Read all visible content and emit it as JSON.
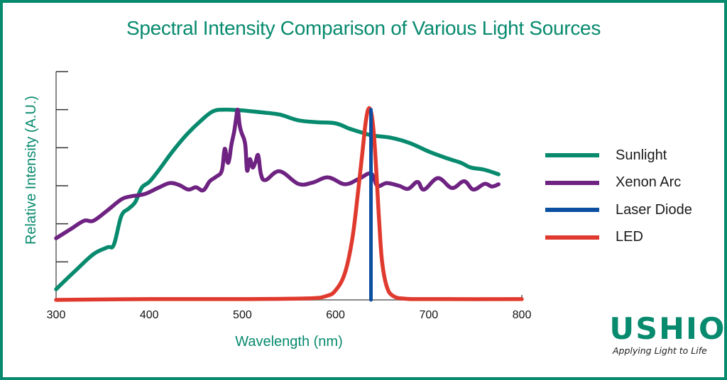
{
  "page": {
    "title": "Spectral Intensity Comparison of Various Light Sources"
  },
  "brand": {
    "logo_text": "USHIO",
    "tagline": "Applying Light to Life",
    "color": "#078a6e"
  },
  "chart_data": {
    "type": "line",
    "title": "Spectral Intensity Comparison of Various Light Sources",
    "xlabel": "Wavelength (nm)",
    "ylabel": "Relative Intensity (A.U.)",
    "xlim": [
      300,
      800
    ],
    "ylim": [
      0,
      6
    ],
    "xticks": [
      300,
      400,
      500,
      600,
      700,
      800
    ],
    "xtick_labels": [
      "300",
      "400",
      "500",
      "600",
      "700",
      "800"
    ],
    "yticks": [
      1,
      2,
      3,
      4,
      5,
      6
    ],
    "ytick_labels_shown": false,
    "grid": false,
    "legend": "right",
    "series": [
      {
        "name": "Sunlight",
        "color": "#078a6e",
        "points": [
          [
            300,
            0.28
          ],
          [
            320,
            0.75
          ],
          [
            340,
            1.2
          ],
          [
            355,
            1.38
          ],
          [
            362,
            1.45
          ],
          [
            370,
            2.2
          ],
          [
            378,
            2.4
          ],
          [
            385,
            2.57
          ],
          [
            392,
            2.95
          ],
          [
            400,
            3.1
          ],
          [
            410,
            3.4
          ],
          [
            425,
            3.9
          ],
          [
            440,
            4.34
          ],
          [
            455,
            4.7
          ],
          [
            468,
            4.95
          ],
          [
            480,
            5.0
          ],
          [
            500,
            4.98
          ],
          [
            520,
            4.93
          ],
          [
            540,
            4.87
          ],
          [
            560,
            4.72
          ],
          [
            580,
            4.67
          ],
          [
            600,
            4.64
          ],
          [
            615,
            4.5
          ],
          [
            628,
            4.4
          ],
          [
            640,
            4.32
          ],
          [
            660,
            4.26
          ],
          [
            680,
            4.12
          ],
          [
            700,
            3.9
          ],
          [
            720,
            3.72
          ],
          [
            735,
            3.6
          ],
          [
            745,
            3.48
          ],
          [
            760,
            3.42
          ],
          [
            775,
            3.3
          ]
        ]
      },
      {
        "name": "Xenon Arc",
        "color": "#6e2281",
        "points": [
          [
            300,
            1.62
          ],
          [
            315,
            1.85
          ],
          [
            330,
            2.08
          ],
          [
            340,
            2.08
          ],
          [
            355,
            2.35
          ],
          [
            370,
            2.64
          ],
          [
            380,
            2.72
          ],
          [
            395,
            2.78
          ],
          [
            410,
            2.95
          ],
          [
            422,
            3.07
          ],
          [
            432,
            3.02
          ],
          [
            442,
            2.9
          ],
          [
            450,
            2.96
          ],
          [
            458,
            2.88
          ],
          [
            465,
            3.12
          ],
          [
            472,
            3.24
          ],
          [
            478,
            3.4
          ],
          [
            481,
            3.97
          ],
          [
            484,
            3.62
          ],
          [
            486,
            3.7
          ],
          [
            488,
            4.05
          ],
          [
            491,
            4.4
          ],
          [
            493,
            4.72
          ],
          [
            495,
            5.0
          ],
          [
            497,
            4.6
          ],
          [
            499,
            4.4
          ],
          [
            503,
            4.1
          ],
          [
            505,
            3.4
          ],
          [
            508,
            3.7
          ],
          [
            511,
            3.48
          ],
          [
            514,
            3.62
          ],
          [
            517,
            3.8
          ],
          [
            520,
            3.3
          ],
          [
            525,
            3.15
          ],
          [
            540,
            3.38
          ],
          [
            560,
            3.05
          ],
          [
            575,
            3.08
          ],
          [
            592,
            3.22
          ],
          [
            610,
            3.04
          ],
          [
            625,
            3.18
          ],
          [
            638,
            3.32
          ],
          [
            645,
            3.0
          ],
          [
            655,
            3.07
          ],
          [
            668,
            3.0
          ],
          [
            678,
            2.92
          ],
          [
            688,
            3.1
          ],
          [
            695,
            2.9
          ],
          [
            710,
            3.2
          ],
          [
            725,
            2.94
          ],
          [
            738,
            3.12
          ],
          [
            748,
            2.9
          ],
          [
            760,
            3.05
          ],
          [
            768,
            2.98
          ],
          [
            775,
            3.04
          ]
        ]
      },
      {
        "name": "Laser Diode",
        "color": "#0b4fa0",
        "points": [
          [
            638,
            0.0
          ],
          [
            638,
            5.0
          ]
        ]
      },
      {
        "name": "LED",
        "color": "#e03a2f",
        "points": [
          [
            300,
            0.0
          ],
          [
            400,
            0.02
          ],
          [
            500,
            0.02
          ],
          [
            570,
            0.04
          ],
          [
            590,
            0.1
          ],
          [
            600,
            0.25
          ],
          [
            610,
            0.7
          ],
          [
            618,
            1.6
          ],
          [
            624,
            2.8
          ],
          [
            629,
            3.9
          ],
          [
            632,
            4.6
          ],
          [
            635,
            5.0
          ],
          [
            638,
            4.95
          ],
          [
            641,
            4.4
          ],
          [
            644,
            3.3
          ],
          [
            647,
            2.0
          ],
          [
            650,
            1.0
          ],
          [
            655,
            0.35
          ],
          [
            662,
            0.1
          ],
          [
            675,
            0.03
          ],
          [
            700,
            0.02
          ],
          [
            800,
            0.02
          ]
        ]
      }
    ]
  }
}
